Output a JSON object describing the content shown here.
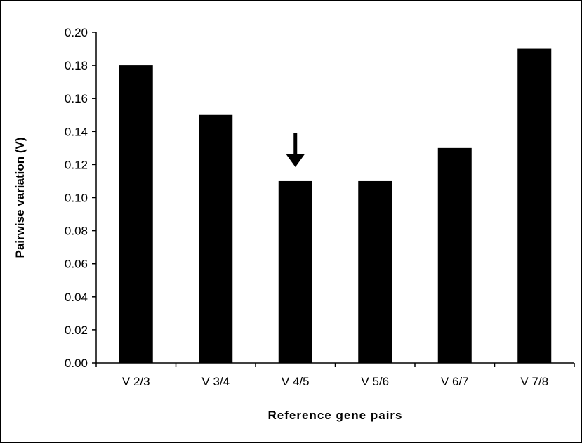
{
  "chart_data": {
    "type": "bar",
    "title": "",
    "xlabel": "Reference gene pairs",
    "ylabel": "Pairwise variation (V)",
    "categories": [
      "V 2/3",
      "V 3/4",
      "V 4/5",
      "V 5/6",
      "V 6/7",
      "V 7/8"
    ],
    "values": [
      0.18,
      0.15,
      0.11,
      0.11,
      0.13,
      0.19
    ],
    "ylim": [
      0,
      0.2
    ],
    "ytick_step": 0.02,
    "ytick_decimals": 2,
    "grid": false,
    "legend": "none",
    "bar_color": "#000000",
    "annotations": [
      {
        "type": "arrow",
        "direction": "down",
        "category": "V 4/5",
        "icon": "down-arrow-icon"
      }
    ]
  }
}
